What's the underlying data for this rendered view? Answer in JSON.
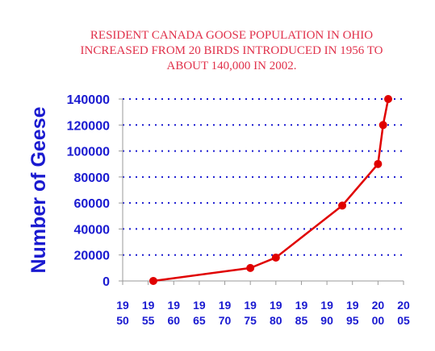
{
  "chart_data": {
    "type": "line",
    "title_lines": [
      "RESIDENT CANADA GOOSE POPULATION IN OHIO",
      "INCREASED FROM 20 BIRDS INTRODUCED IN 1956 TO",
      "ABOUT 140,000 IN 2002."
    ],
    "xlabel": "",
    "ylabel": "Number of Geese",
    "x": [
      1956,
      1975,
      1980,
      1993,
      2000,
      2001,
      2002
    ],
    "values": [
      20,
      10000,
      18000,
      58000,
      90000,
      120000,
      140000
    ],
    "ylim": [
      0,
      140000
    ],
    "xlim": [
      1950,
      2005
    ],
    "yticks": [
      "0",
      "20000",
      "40000",
      "60000",
      "80000",
      "100000",
      "120000",
      "140000"
    ],
    "xticks": [
      {
        "top": "19",
        "bottom": "50"
      },
      {
        "top": "19",
        "bottom": "55"
      },
      {
        "top": "19",
        "bottom": "60"
      },
      {
        "top": "19",
        "bottom": "65"
      },
      {
        "top": "19",
        "bottom": "70"
      },
      {
        "top": "19",
        "bottom": "75"
      },
      {
        "top": "19",
        "bottom": "80"
      },
      {
        "top": "19",
        "bottom": "85"
      },
      {
        "top": "19",
        "bottom": "90"
      },
      {
        "top": "19",
        "bottom": "95"
      },
      {
        "top": "20",
        "bottom": "00"
      },
      {
        "top": "20",
        "bottom": "05"
      }
    ],
    "grid": "horizontal-dotted",
    "line_color": "#e00000",
    "grid_color": "#1a1ad0",
    "axis_color": "#9a9a9a",
    "title_color": "#e0304a",
    "label_color": "#1a1ad0"
  }
}
